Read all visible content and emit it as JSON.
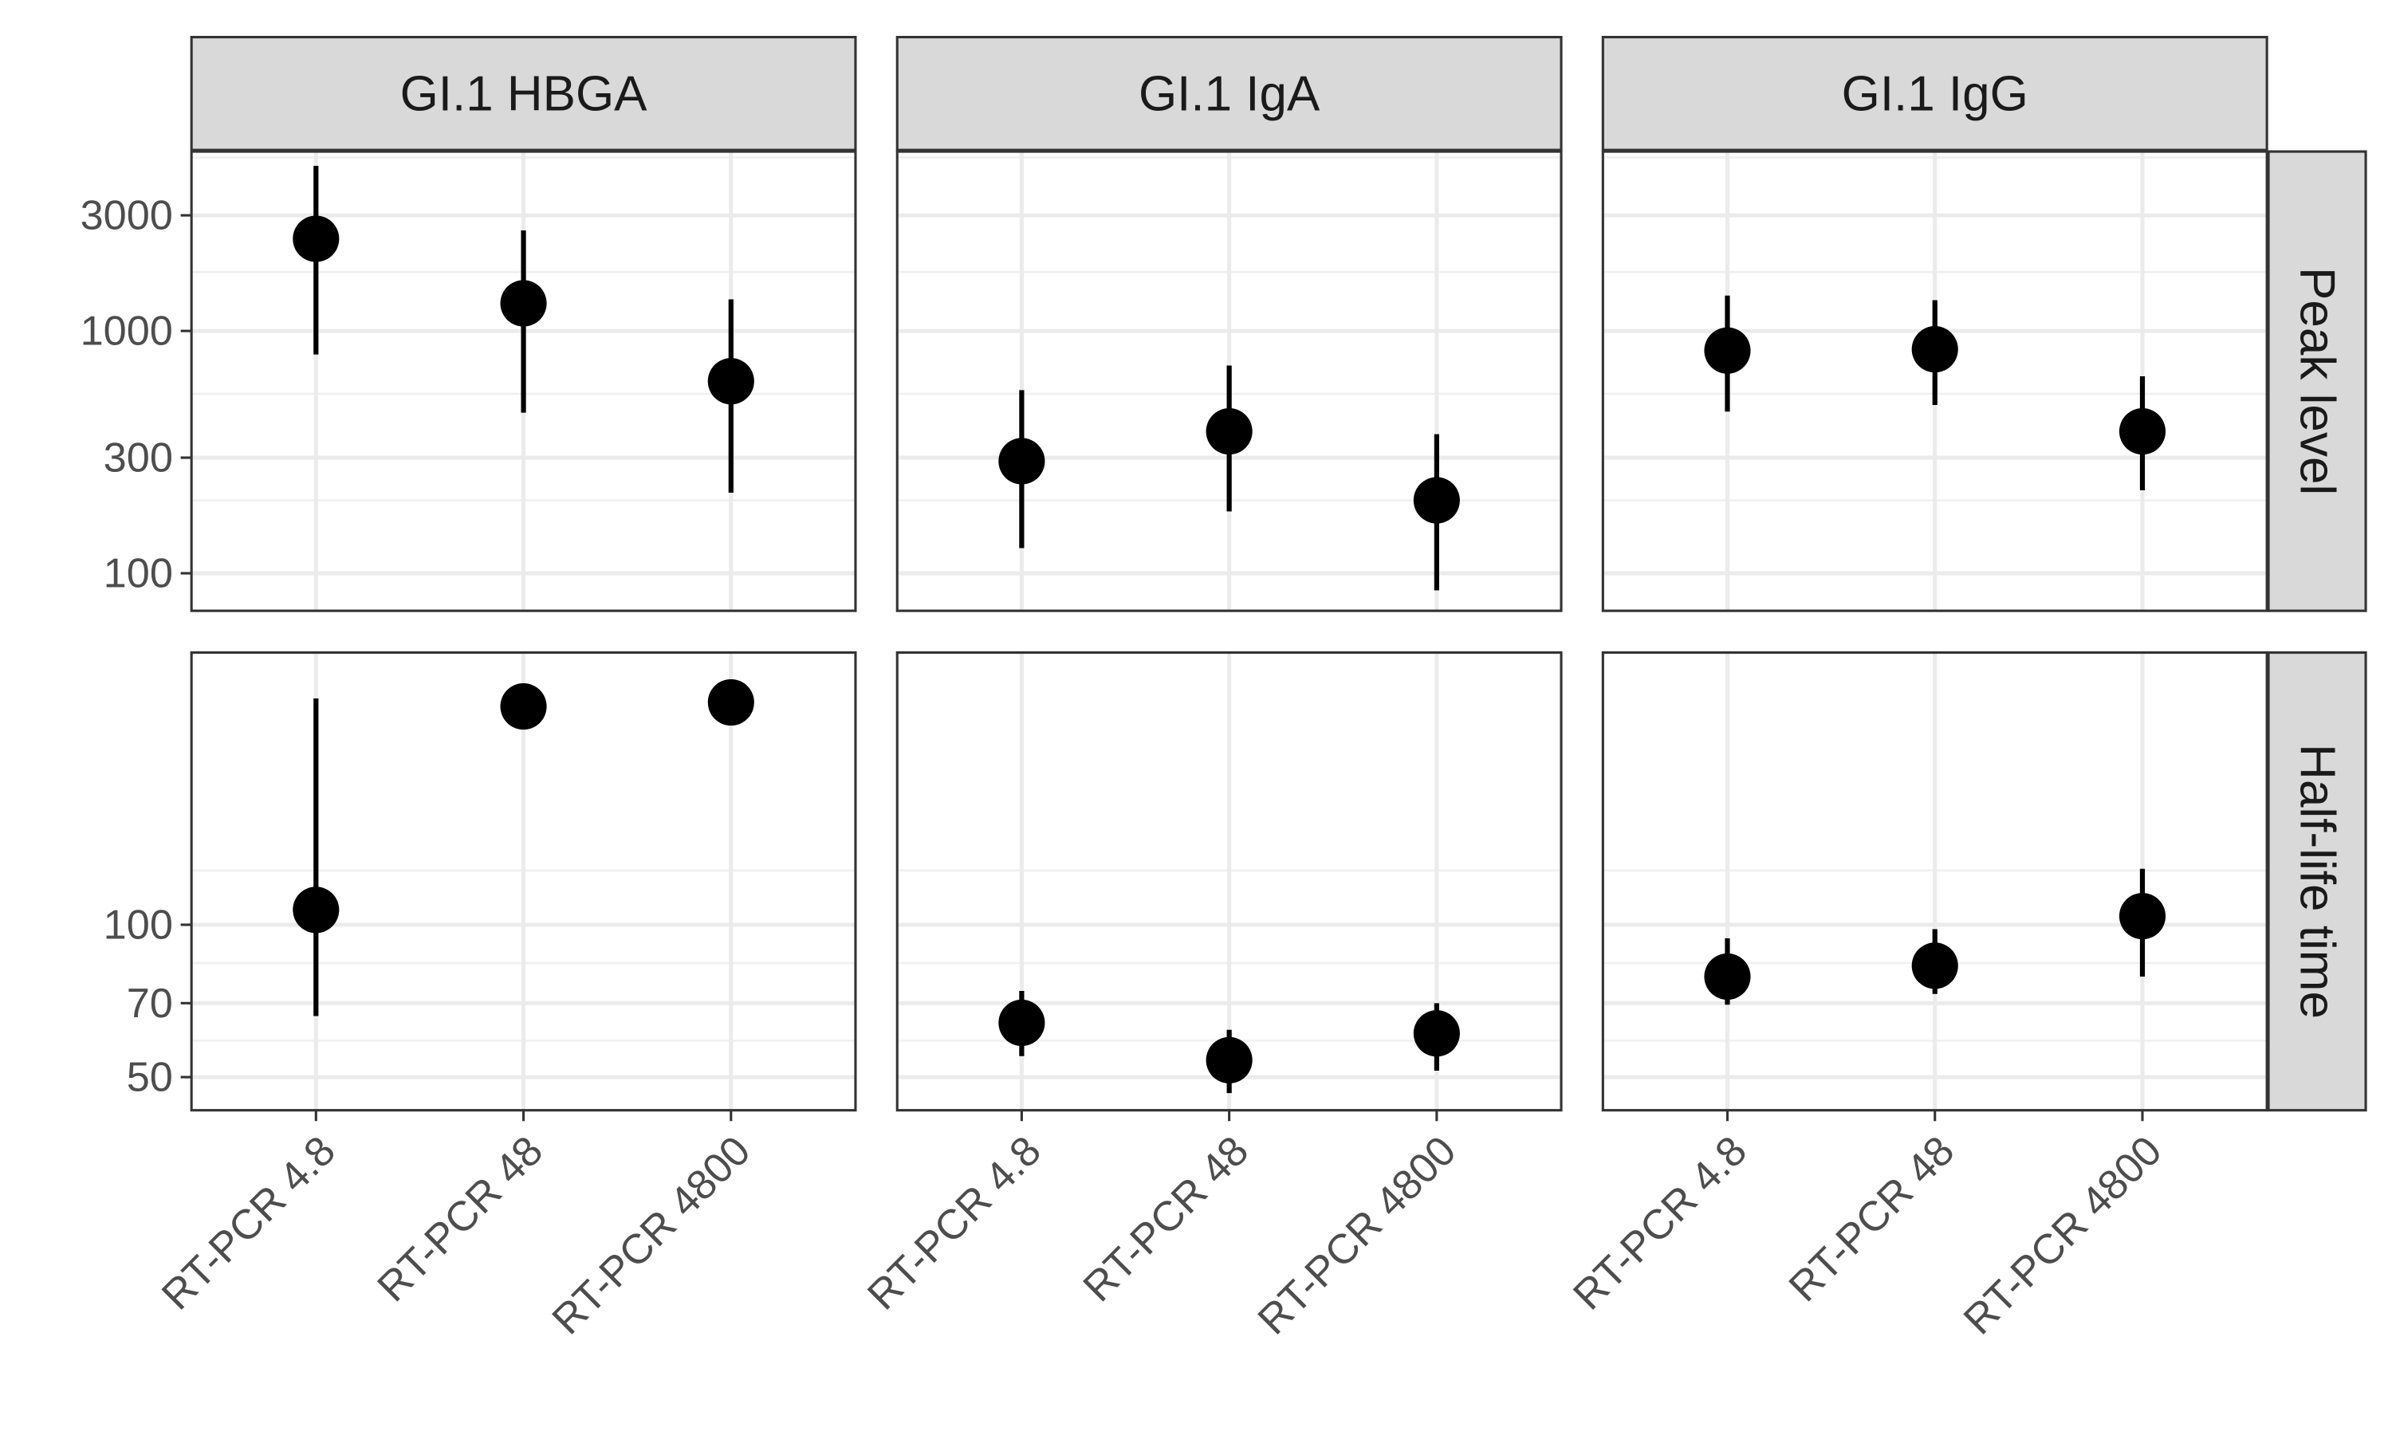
{
  "chart_data": {
    "type": "scatter",
    "subtype": "point-range facet grid",
    "categories": [
      "RT-PCR 4.8",
      "RT-PCR 48",
      "RT-PCR 4800"
    ],
    "columns": [
      "GI.1 HBGA",
      "GI.1 IgA",
      "GI.1 IgG"
    ],
    "rows": [
      {
        "label": "Peak level",
        "scale": "log",
        "ylim": [
          70,
          5500
        ],
        "ticks": [
          100,
          300,
          1000,
          3000
        ],
        "tick_labels": [
          "100",
          "300",
          "1000",
          "3000"
        ],
        "minor_ticks": [
          200,
          550,
          1750,
          5200
        ]
      },
      {
        "label": "Half-life time",
        "scale": "log",
        "ylim": [
          43,
          345
        ],
        "ticks": [
          50,
          70,
          100
        ],
        "tick_labels": [
          "50",
          "70",
          "100"
        ],
        "minor_ticks": [
          59,
          84,
          128
        ]
      }
    ],
    "panels": [
      {
        "row": 0,
        "col": 0,
        "values": [
          2400,
          1300,
          620
        ],
        "lower": [
          800,
          460,
          215
        ],
        "upper": [
          4800,
          2600,
          1350
        ]
      },
      {
        "row": 0,
        "col": 1,
        "values": [
          290,
          385,
          200
        ],
        "lower": [
          127,
          180,
          85
        ],
        "upper": [
          570,
          720,
          375
        ]
      },
      {
        "row": 0,
        "col": 2,
        "values": [
          830,
          840,
          385
        ],
        "lower": [
          465,
          495,
          220
        ],
        "upper": [
          1400,
          1340,
          650
        ]
      },
      {
        "row": 1,
        "col": 0,
        "values": [
          107,
          270,
          275
        ],
        "lower": [
          66,
          250,
          275
        ],
        "upper": [
          280,
          270,
          275
        ]
      },
      {
        "row": 1,
        "col": 1,
        "values": [
          64,
          54,
          61
        ],
        "lower": [
          55,
          46.5,
          51.5
        ],
        "upper": [
          74,
          62,
          70
        ]
      },
      {
        "row": 1,
        "col": 2,
        "values": [
          79,
          83,
          104
        ],
        "lower": [
          69.5,
          73,
          79
        ],
        "upper": [
          94,
          98,
          129
        ]
      }
    ],
    "grid": true,
    "legend": "none",
    "point_color": "#000000"
  }
}
